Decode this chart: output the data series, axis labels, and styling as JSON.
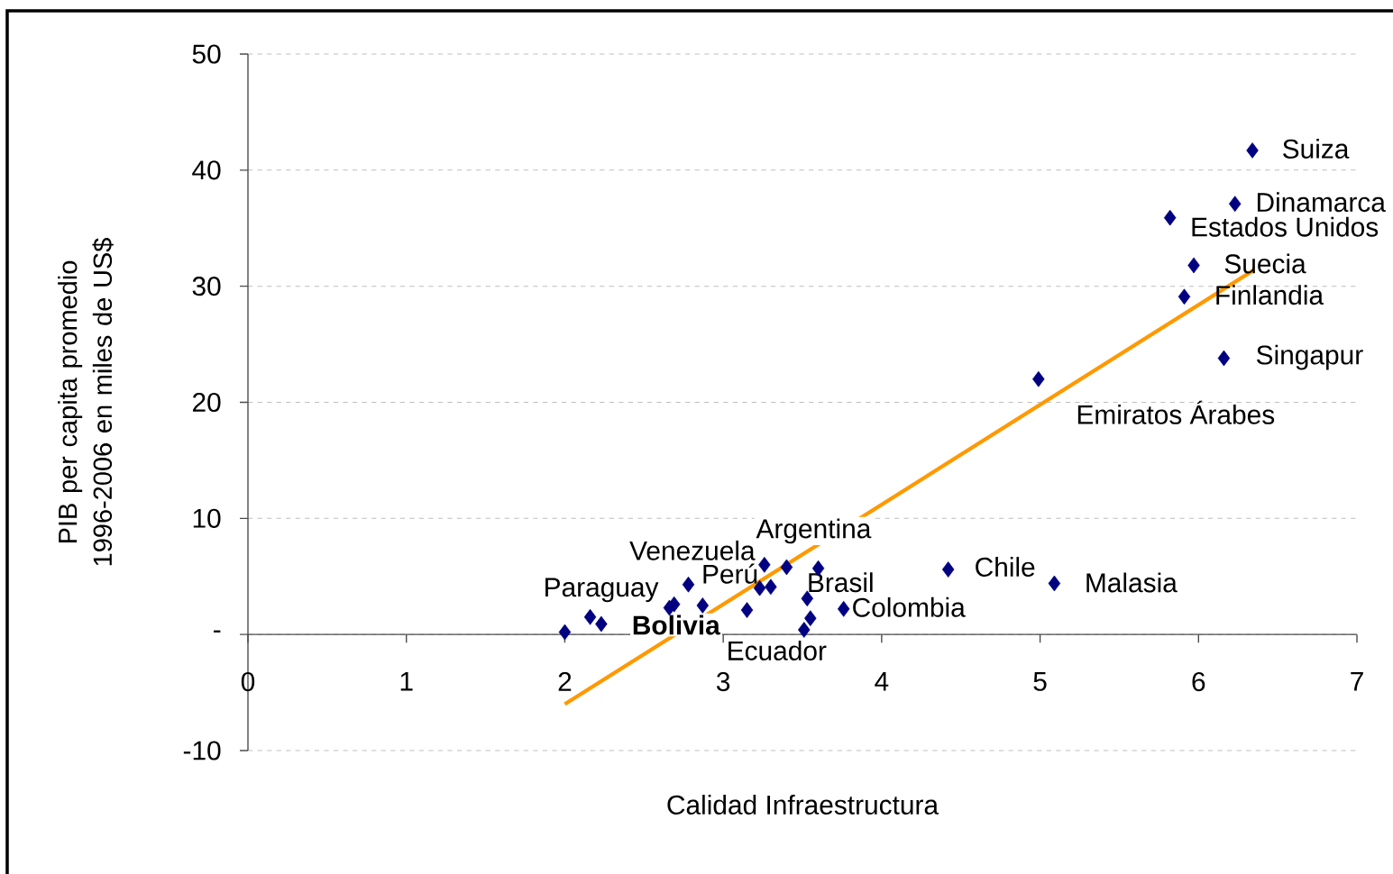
{
  "chart_data": {
    "type": "scatter",
    "xlabel": "Calidad Infraestructura",
    "ylabel": "PIB per capita promedio 1996-2006 en miles de US$",
    "xlim": [
      0,
      7
    ],
    "ylim": [
      -10,
      50
    ],
    "xticks": [
      0,
      1,
      2,
      3,
      4,
      5,
      6,
      7
    ],
    "yticks": [
      -10,
      {
        "value": 0,
        "label": "-"
      },
      10,
      20,
      30,
      40,
      50
    ],
    "grid": "y",
    "marker": "diamond",
    "series": [
      {
        "color": "#000080",
        "x": [
          2.0,
          2.16,
          2.23,
          2.66,
          2.69,
          2.78,
          2.87,
          3.15,
          3.23,
          3.26,
          3.3,
          3.4,
          3.51,
          3.53,
          3.55,
          3.6,
          3.76,
          4.42,
          4.99,
          5.09,
          5.82,
          5.91,
          5.97,
          6.16,
          6.23,
          6.34
        ],
        "values": [
          0.2,
          1.5,
          0.9,
          2.3,
          2.6,
          4.3,
          2.5,
          2.1,
          4.0,
          6.0,
          4.1,
          5.8,
          0.4,
          3.1,
          1.4,
          5.7,
          2.2,
          5.6,
          22.0,
          4.4,
          35.9,
          29.1,
          31.8,
          23.8,
          37.1,
          41.7
        ]
      },
      {
        "type": "line",
        "color": "#ff9900",
        "marker": "none",
        "x": [
          2.0,
          6.35
        ],
        "values": [
          -6.0,
          31.4
        ]
      }
    ],
    "annotations": [
      {
        "text": "Paraguay",
        "x": 2.16,
        "y": 1.5
      },
      {
        "text": "**Bolivia**",
        "x": 2.23,
        "y": 0.9
      },
      {
        "text": "Ecuador",
        "x": 2.87,
        "y": 2.5
      },
      {
        "text": "Perú",
        "x": 3.23,
        "y": 4.0
      },
      {
        "text": "Venezuela",
        "x": 3.26,
        "y": 6.0
      },
      {
        "text": "Argentina",
        "x": 3.4,
        "y": 5.8
      },
      {
        "text": "Brasil",
        "x": 3.53,
        "y": 3.1
      },
      {
        "text": "Colombia",
        "x": 3.76,
        "y": 2.2
      },
      {
        "text": "Chile",
        "x": 4.42,
        "y": 5.6
      },
      {
        "text": "Emiratos Árabes",
        "x": 4.99,
        "y": 22.0
      },
      {
        "text": "Malasia",
        "x": 5.09,
        "y": 4.4
      },
      {
        "text": "Estados Unidos",
        "x": 5.82,
        "y": 35.9
      },
      {
        "text": "Finlandia",
        "x": 5.91,
        "y": 29.1
      },
      {
        "text": "Suecia",
        "x": 5.97,
        "y": 31.8
      },
      {
        "text": "Singapur",
        "x": 6.16,
        "y": 23.8
      },
      {
        "text": "Dinamarca",
        "x": 6.23,
        "y": 37.1
      },
      {
        "text": "Suiza",
        "x": 6.34,
        "y": 41.7
      }
    ]
  }
}
